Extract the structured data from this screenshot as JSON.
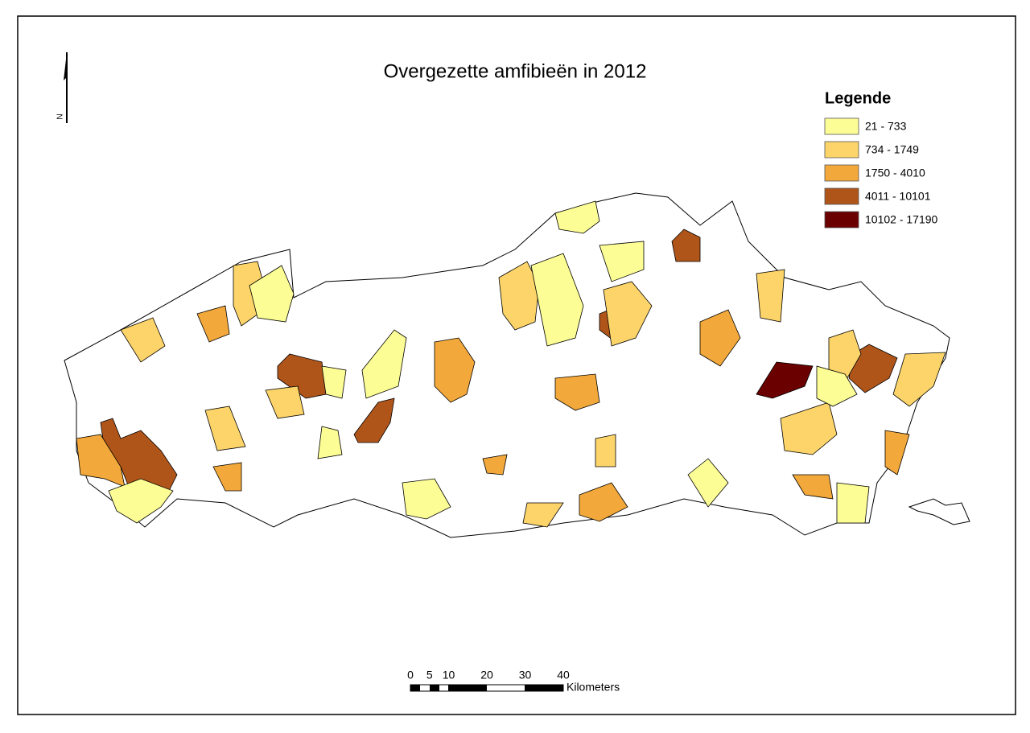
{
  "title": "Overgezette amfibieën in 2012",
  "north_arrow": {
    "label": "N"
  },
  "legend": {
    "title": "Legende",
    "items": [
      {
        "label": "21 - 733",
        "color": "#fdfd96"
      },
      {
        "label": "734 - 1749",
        "color": "#fcd46a"
      },
      {
        "label": "1750 - 4010",
        "color": "#f2a83a"
      },
      {
        "label": "4011 - 10101",
        "color": "#b0551a"
      },
      {
        "label": "10102 - 17190",
        "color": "#6b0000"
      }
    ]
  },
  "scale_bar": {
    "ticks": [
      0,
      5,
      10,
      20,
      30,
      40
    ],
    "unit": "Kilometers"
  }
}
